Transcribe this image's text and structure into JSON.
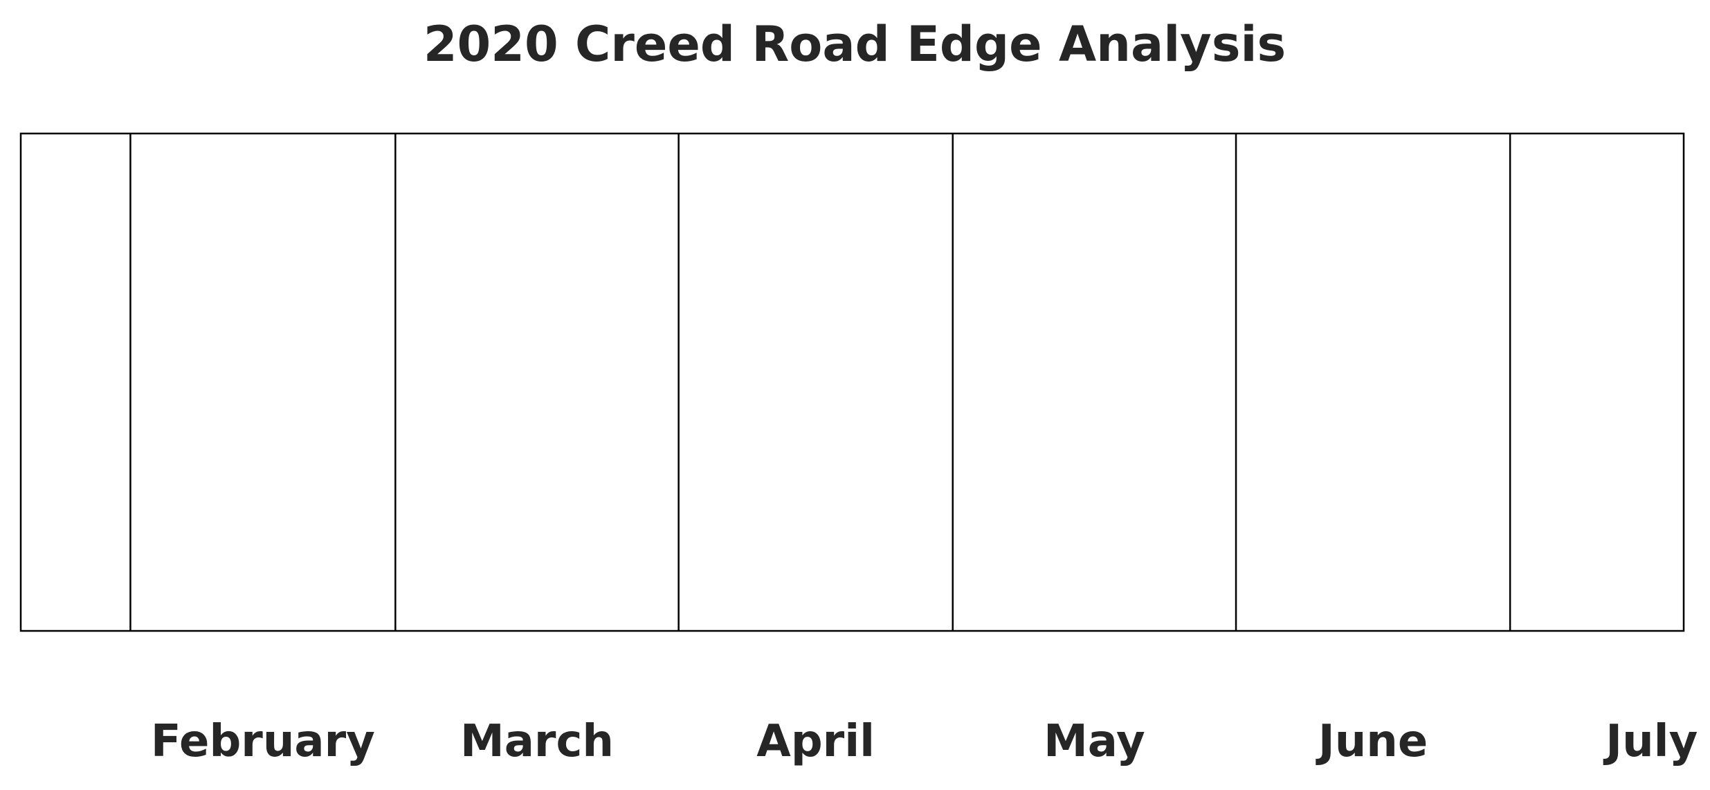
{
  "chart_data": {
    "type": "timeline",
    "title": "2020 Creed Road Edge Analysis",
    "x_axis": {
      "type": "time",
      "range": [
        "2020-01-20",
        "2020-07-20"
      ],
      "tick_labels": [
        "February",
        "March",
        "April",
        "May",
        "June",
        "July"
      ]
    },
    "month_boundaries": [
      "2020-02-01",
      "2020-03-01",
      "2020-04-01",
      "2020-05-01",
      "2020-06-01",
      "2020-07-01"
    ],
    "series": [],
    "grid": false,
    "legend": "none"
  }
}
